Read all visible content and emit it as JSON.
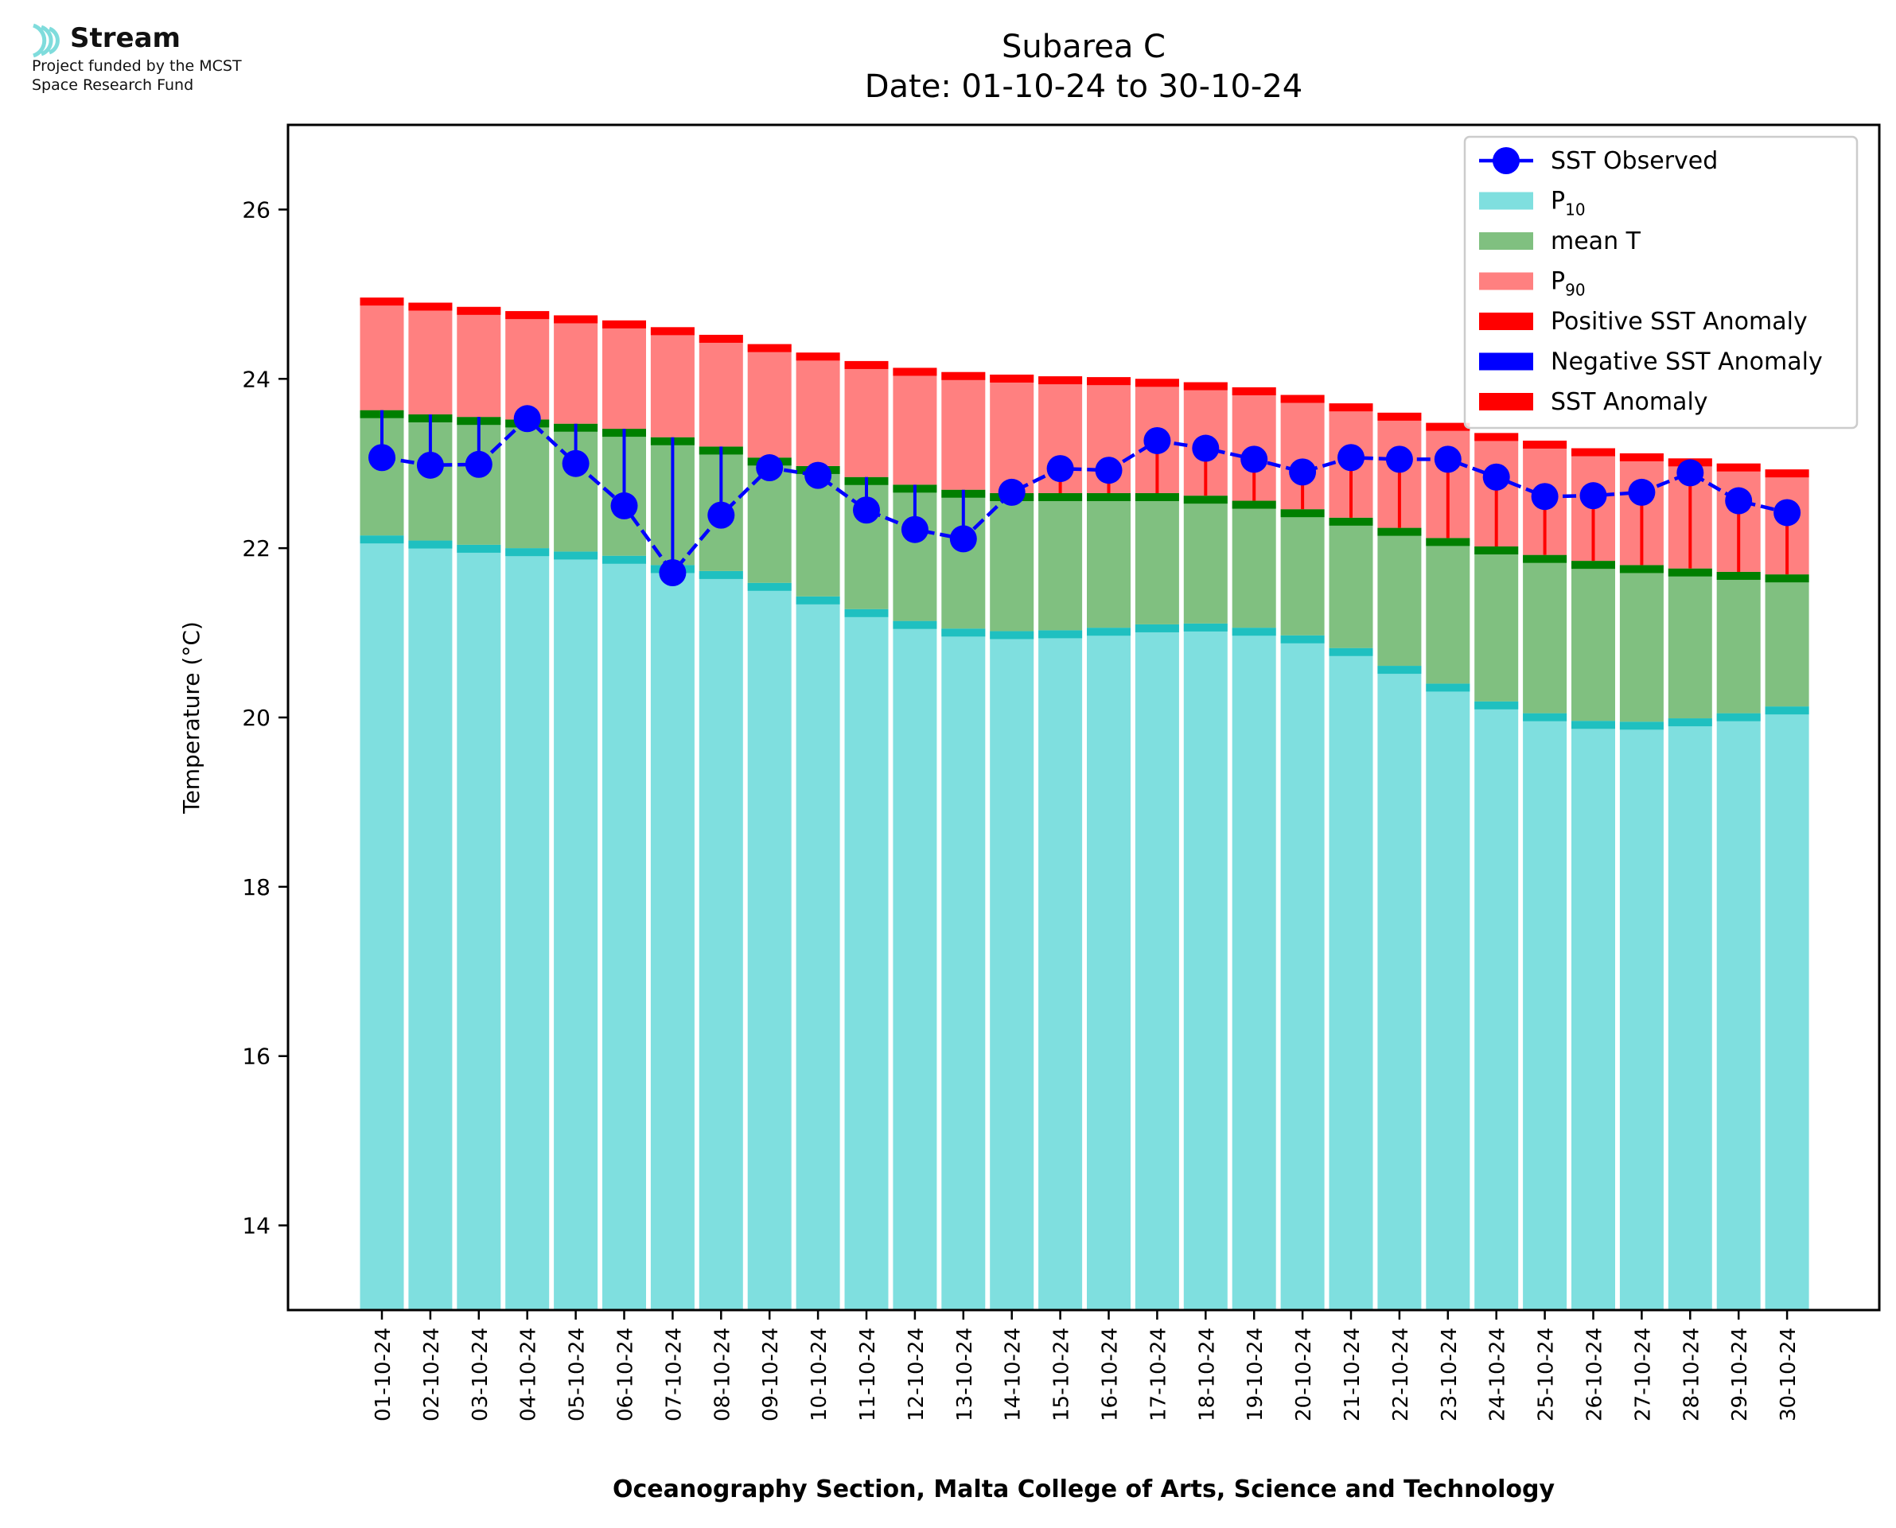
{
  "logo": {
    "icon": "stream-wave-icon",
    "brand": "Stream",
    "line1": "Project funded by the MCST",
    "line2": "Space Research Fund",
    "color": "#7fdcdc"
  },
  "chart_data": {
    "type": "bar",
    "title": "Subarea C",
    "subtitle": "Date: 01-10-24 to 30-10-24",
    "xlabel": "Oceanography Section, Malta College of Arts, Science and Technology",
    "ylabel": "Temperature (°C)",
    "ylim": [
      13,
      27
    ],
    "yticks": [
      14,
      16,
      18,
      20,
      22,
      24,
      26
    ],
    "grid": false,
    "legend_position": "top-right",
    "colors": {
      "p10": "#7fdfdf",
      "p10_edge": "#1fc0c0",
      "mean": "#80c080",
      "mean_edge": "#007f00",
      "p90": "#ff8080",
      "p90_edge": "#ff0000",
      "sst": "#0000ff",
      "positive_anomaly": "#ff0000",
      "negative_anomaly": "#0000ff",
      "anomaly": "#ff0000"
    },
    "categories": [
      "01-10-24",
      "02-10-24",
      "03-10-24",
      "04-10-24",
      "05-10-24",
      "06-10-24",
      "07-10-24",
      "08-10-24",
      "09-10-24",
      "10-10-24",
      "11-10-24",
      "12-10-24",
      "13-10-24",
      "14-10-24",
      "15-10-24",
      "16-10-24",
      "17-10-24",
      "18-10-24",
      "19-10-24",
      "20-10-24",
      "21-10-24",
      "22-10-24",
      "23-10-24",
      "24-10-24",
      "25-10-24",
      "26-10-24",
      "27-10-24",
      "28-10-24",
      "29-10-24",
      "30-10-24"
    ],
    "series": [
      {
        "name": "P10",
        "values": [
          22.15,
          22.09,
          22.04,
          22.0,
          21.96,
          21.91,
          21.8,
          21.73,
          21.59,
          21.43,
          21.28,
          21.14,
          21.05,
          21.02,
          21.03,
          21.06,
          21.1,
          21.11,
          21.06,
          20.97,
          20.82,
          20.61,
          20.4,
          20.19,
          20.05,
          19.96,
          19.95,
          19.99,
          20.05,
          20.13
        ]
      },
      {
        "name": "mean T",
        "values": [
          23.63,
          23.58,
          23.55,
          23.52,
          23.47,
          23.41,
          23.31,
          23.2,
          23.07,
          22.97,
          22.84,
          22.75,
          22.69,
          22.65,
          22.65,
          22.65,
          22.65,
          22.62,
          22.56,
          22.46,
          22.36,
          22.24,
          22.12,
          22.02,
          21.92,
          21.85,
          21.8,
          21.76,
          21.72,
          21.69
        ]
      },
      {
        "name": "P90",
        "values": [
          24.96,
          24.9,
          24.85,
          24.8,
          24.75,
          24.69,
          24.61,
          24.52,
          24.41,
          24.31,
          24.21,
          24.13,
          24.08,
          24.05,
          24.03,
          24.02,
          24.0,
          23.96,
          23.9,
          23.81,
          23.71,
          23.6,
          23.48,
          23.36,
          23.27,
          23.18,
          23.12,
          23.06,
          23.0,
          22.93
        ]
      },
      {
        "name": "SST Observed",
        "values": [
          23.07,
          22.98,
          22.99,
          23.53,
          23.0,
          22.5,
          21.71,
          22.39,
          22.95,
          22.86,
          22.45,
          22.22,
          22.11,
          22.66,
          22.94,
          22.92,
          23.27,
          23.18,
          23.05,
          22.9,
          23.07,
          23.05,
          23.05,
          22.84,
          22.61,
          22.62,
          22.66,
          22.89,
          22.56,
          22.42
        ]
      }
    ],
    "legend": [
      {
        "label": "SST Observed",
        "kind": "line-marker",
        "color": "#0000ff"
      },
      {
        "label": "P",
        "sub": "10",
        "kind": "patch",
        "color": "#7fdfdf"
      },
      {
        "label": "mean T",
        "kind": "patch",
        "color": "#80c080"
      },
      {
        "label": "P",
        "sub": "90",
        "kind": "patch",
        "color": "#ff8080"
      },
      {
        "label": "Positive SST Anomaly",
        "kind": "patch",
        "color": "#ff0000"
      },
      {
        "label": "Negative SST Anomaly",
        "kind": "patch",
        "color": "#0000ff"
      },
      {
        "label": "SST Anomaly",
        "kind": "patch",
        "color": "#ff0000"
      }
    ]
  }
}
